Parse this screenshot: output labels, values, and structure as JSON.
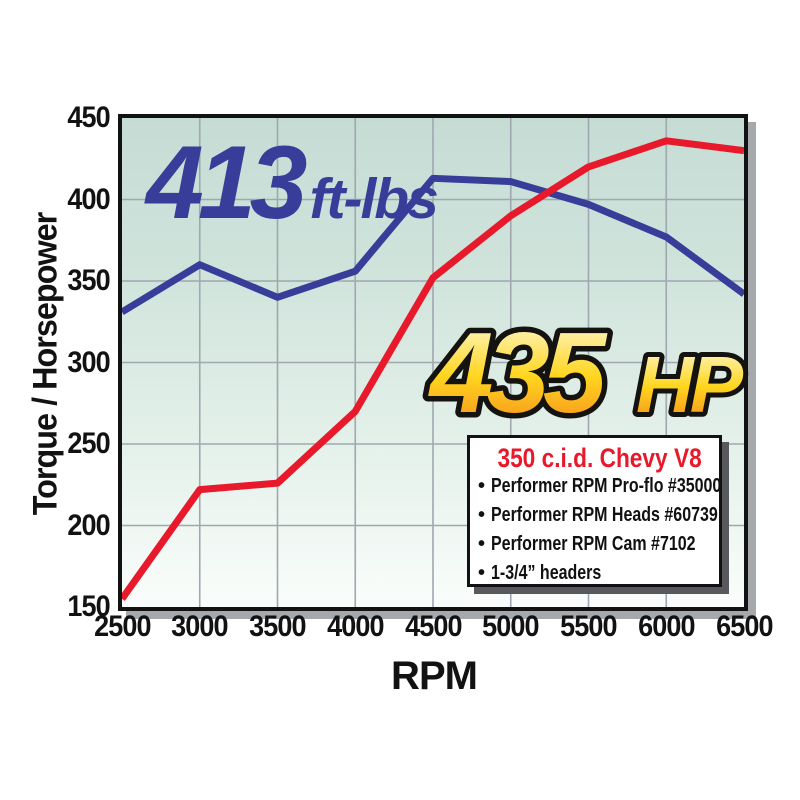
{
  "chart_data": {
    "type": "line",
    "xlabel": "RPM",
    "ylabel": "Torque / Horsepower",
    "xlim": [
      2500,
      6500
    ],
    "ylim": [
      150,
      450
    ],
    "x_ticks": [
      2500,
      3000,
      3500,
      4000,
      4500,
      5000,
      5500,
      6000,
      6500
    ],
    "y_ticks": [
      150,
      200,
      250,
      300,
      350,
      400,
      450
    ],
    "grid": true,
    "legend_position": "inside-bottom-right",
    "x": [
      2500,
      3000,
      3500,
      4000,
      4500,
      5000,
      5500,
      6000,
      6500
    ],
    "series": [
      {
        "name": "torque-curve",
        "color": "#383d99",
        "values": [
          331,
          360,
          340,
          356,
          413,
          411,
          397,
          377,
          342
        ]
      },
      {
        "name": "horsepower-curve",
        "color": "#e8192b",
        "values": [
          155,
          222,
          226,
          270,
          352,
          390,
          420,
          436,
          430
        ]
      }
    ],
    "callouts": {
      "torque_peak": {
        "value": "413",
        "unit": "ft-lbs",
        "color": "#383d99"
      },
      "hp_peak": {
        "value": "435",
        "unit": "HP",
        "gradient_top": "#fffce4",
        "gradient_mid": "#ffd61e",
        "gradient_bottom": "#f6851f"
      }
    },
    "legend_box": {
      "title": "350 c.i.d. Chevy V8",
      "title_color": "#e8192b",
      "bullet": "•",
      "items": [
        "Performer RPM Pro-flo #35000",
        "Performer RPM Heads #60739",
        "Performer RPM Cam #7102",
        "1-3/4” headers"
      ]
    }
  },
  "style_colors": {
    "plot_bg_top": "#c5dcd4",
    "plot_bg_bottom": "#fafdfb",
    "gridline": "#a0a7ae",
    "axis_border": "#121212",
    "plot_shadow": "#a6a9ab",
    "legend_shadow": "#58595c"
  }
}
